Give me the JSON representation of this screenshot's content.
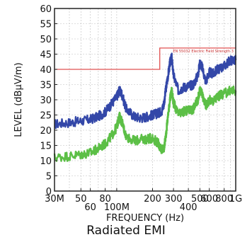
{
  "chart_data": {
    "type": "line",
    "xlabel": "FREQUENCY (Hz)",
    "ylabel": "LEVEL (dBμV/m)",
    "xscale": "log",
    "xlim": [
      30000000,
      1000000000
    ],
    "ylim": [
      0,
      60
    ],
    "grid": true,
    "x_ticks": [
      {
        "value": 30000000,
        "label": "30M",
        "row": 1
      },
      {
        "value": 50000000,
        "label": "50",
        "row": 1
      },
      {
        "value": 60000000,
        "label": "60",
        "row": 2
      },
      {
        "value": 80000000,
        "label": "80",
        "row": 1
      },
      {
        "value": 100000000,
        "label": "100M",
        "row": 2
      },
      {
        "value": 200000000,
        "label": "200",
        "row": 1
      },
      {
        "value": 300000000,
        "label": "300",
        "row": 1
      },
      {
        "value": 400000000,
        "label": "400",
        "row": 2
      },
      {
        "value": 500000000,
        "label": "500",
        "row": 1
      },
      {
        "value": 600000000,
        "label": "600",
        "row": 1
      },
      {
        "value": 800000000,
        "label": "800",
        "row": 1
      },
      {
        "value": 1000000000,
        "label": "1G",
        "row": 1
      }
    ],
    "y_ticks": [
      0,
      5,
      10,
      15,
      20,
      25,
      30,
      35,
      40,
      45,
      50,
      55,
      60
    ],
    "series": [
      {
        "color": "#3347a8",
        "x": [
          30000000,
          40000000,
          50000000,
          60000000,
          70000000,
          80000000,
          90000000,
          100000000,
          105000000,
          110000000,
          120000000,
          140000000,
          160000000,
          180000000,
          200000000,
          220000000,
          240000000,
          250000000,
          260000000,
          270000000,
          280000000,
          290000000,
          300000000,
          330000000,
          360000000,
          400000000,
          440000000,
          480000000,
          500000000,
          520000000,
          560000000,
          600000000,
          650000000,
          700000000,
          800000000,
          900000000,
          1000000000
        ],
        "values": [
          22,
          22.5,
          23,
          23.5,
          24.5,
          26,
          28.5,
          31,
          33,
          32,
          27,
          24.5,
          24,
          24.5,
          25,
          25.5,
          26.5,
          29,
          34,
          38,
          42,
          44,
          38,
          33,
          34,
          34.5,
          35,
          38,
          42,
          41,
          36,
          39,
          38.5,
          40,
          41,
          43,
          43
        ]
      },
      {
        "color": "#5cbf46",
        "x": [
          30000000,
          40000000,
          50000000,
          60000000,
          70000000,
          80000000,
          90000000,
          100000000,
          105000000,
          110000000,
          120000000,
          140000000,
          160000000,
          180000000,
          200000000,
          220000000,
          240000000,
          250000000,
          260000000,
          270000000,
          280000000,
          290000000,
          300000000,
          330000000,
          360000000,
          400000000,
          440000000,
          480000000,
          500000000,
          520000000,
          560000000,
          600000000,
          650000000,
          700000000,
          800000000,
          900000000,
          1000000000
        ],
        "values": [
          11,
          11.5,
          12,
          12.5,
          14,
          15.5,
          18,
          21,
          24.5,
          23,
          18,
          16.5,
          17,
          17,
          17.5,
          16,
          13.5,
          14,
          19,
          25,
          30,
          33,
          29,
          25,
          26,
          26.5,
          27,
          30,
          33,
          32,
          28,
          30,
          29.5,
          31,
          32,
          33,
          33
        ]
      }
    ],
    "limit_line": {
      "label": "EN 55032 Electric Field Strength 3",
      "color": "#e05050",
      "segments": [
        {
          "x_start": 30000000,
          "x_end": 230000000,
          "value": 40
        },
        {
          "x_start": 230000000,
          "x_end": 1000000000,
          "value": 47
        }
      ]
    }
  },
  "caption": "Radiated EMI"
}
